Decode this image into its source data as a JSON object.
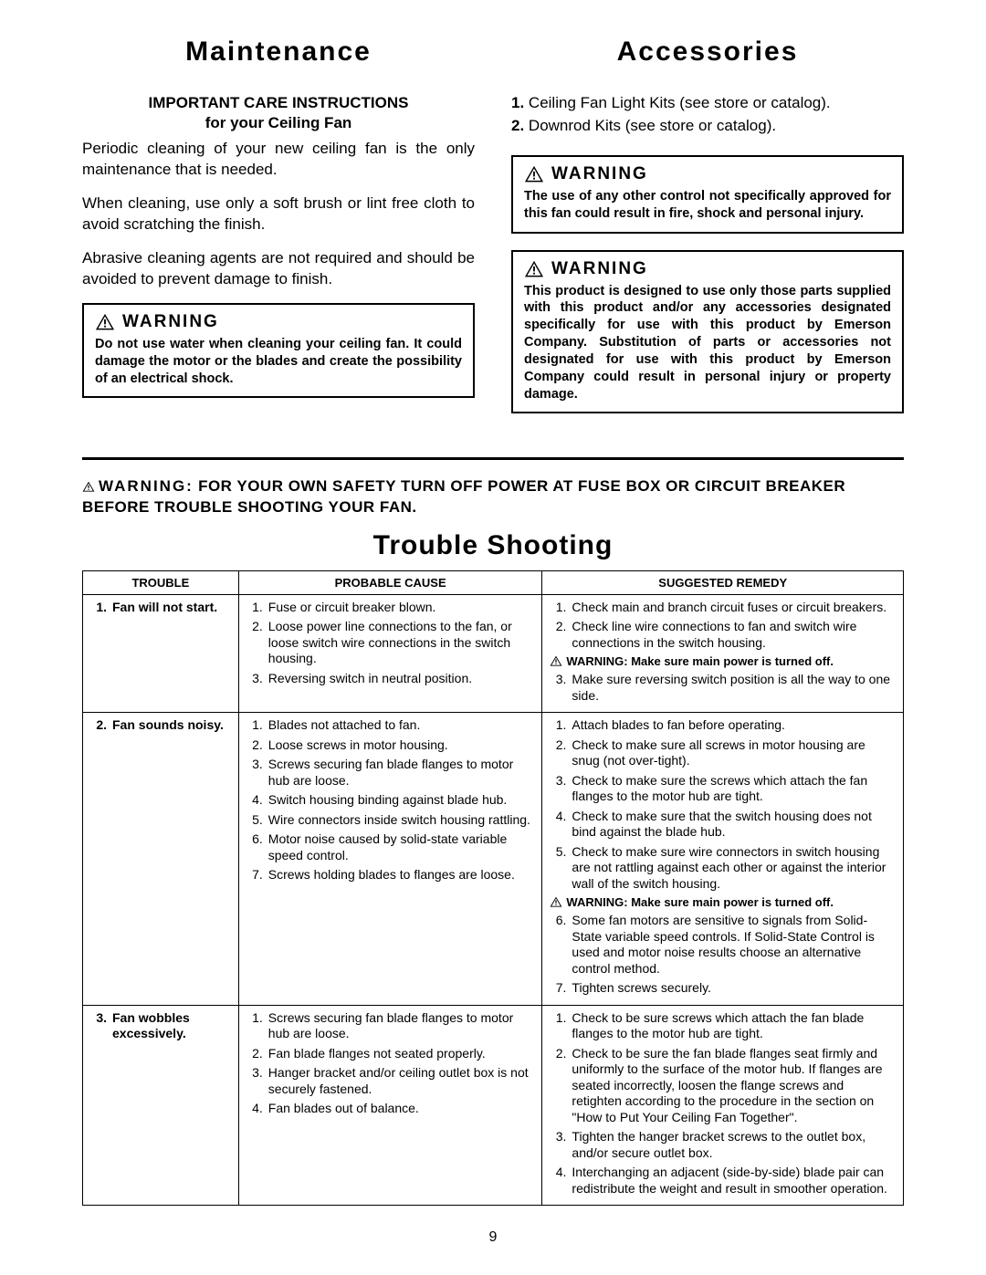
{
  "maintenance": {
    "title": "Maintenance",
    "subhead1": "IMPORTANT CARE INSTRUCTIONS",
    "subhead2": "for your Ceiling Fan",
    "p1": "Periodic cleaning of your new ceiling fan is the only maintenance that is needed.",
    "p2": "When cleaning, use only a soft brush or lint free cloth to avoid scratching the finish.",
    "p3": "Abrasive cleaning agents are not required and should be avoided to prevent damage to finish.",
    "warning_title": "WARNING",
    "warning_body": "Do not use water when cleaning your ceiling fan. It could damage the motor or the blades and create the possibility of an electrical shock."
  },
  "accessories": {
    "title": "Accessories",
    "item1_num": "1.",
    "item1_text": "Ceiling Fan Light Kits (see store or catalog).",
    "item2_num": "2.",
    "item2_text": "Downrod Kits (see store or catalog).",
    "warning1_title": "WARNING",
    "warning1_body": "The use of any other control not specifically approved for this fan could result in fire, shock and personal injury.",
    "warning2_title": "WARNING",
    "warning2_body": "This product is designed to use only those parts supplied with this product and/or any accessories designated specifically for use with this product by Emerson Company. Substitution of parts or accessories not designated for use with this product by Emerson Company could result in personal injury or property damage."
  },
  "trouble": {
    "warn_lead": "WARNING:",
    "warn_text": "FOR YOUR OWN SAFETY TURN OFF POWER AT FUSE BOX OR CIRCUIT BREAKER BEFORE TROUBLE SHOOTING YOUR FAN.",
    "title": "Trouble Shooting",
    "headers": {
      "c1": "TROUBLE",
      "c2": "PROBABLE CAUSE",
      "c3": "SUGGESTED REMEDY"
    },
    "inline_warning": "WARNING: Make sure main power is turned off.",
    "rows": [
      {
        "trouble_n": "1.",
        "trouble_t": "Fan will not start.",
        "causes": [
          {
            "n": "1.",
            "t": "Fuse or circuit breaker blown."
          },
          {
            "n": "2.",
            "t": "Loose power line connections to the fan, or loose switch wire connections in the switch housing."
          },
          {
            "n": "3.",
            "t": "Reversing switch in neutral position."
          }
        ],
        "remedies": [
          {
            "n": "1.",
            "t": "Check main and branch circuit fuses or circuit breakers."
          },
          {
            "n": "2.",
            "t": "Check line wire connections to fan and switch wire connections in the switch housing."
          },
          {
            "warn": true
          },
          {
            "n": "3.",
            "t": "Make sure reversing switch position is all the way to one side."
          }
        ]
      },
      {
        "trouble_n": "2.",
        "trouble_t": "Fan sounds noisy.",
        "causes": [
          {
            "n": "1.",
            "t": "Blades not attached to fan."
          },
          {
            "n": "2.",
            "t": "Loose screws in motor housing."
          },
          {
            "n": "3.",
            "t": "Screws securing fan blade flanges to motor hub are loose."
          },
          {
            "n": "4.",
            "t": "Switch housing binding against blade hub."
          },
          {
            "n": "5.",
            "t": "Wire connectors inside switch housing rattling."
          },
          {
            "n": "6.",
            "t": "Motor noise caused by solid-state variable speed control."
          },
          {
            "n": "7.",
            "t": "Screws holding blades to flanges are loose."
          }
        ],
        "remedies": [
          {
            "n": "1.",
            "t": "Attach blades to fan before operating."
          },
          {
            "n": "2.",
            "t": "Check to make sure all screws in motor housing are snug (not over-tight)."
          },
          {
            "n": "3.",
            "t": "Check to make sure the screws which attach the fan flanges to the motor hub are tight."
          },
          {
            "n": "4.",
            "t": "Check to make sure that the switch housing does not bind against the blade hub."
          },
          {
            "n": "5.",
            "t": "Check to make sure wire connectors in switch housing are not rattling against each other or against the interior wall of the switch housing."
          },
          {
            "warn": true
          },
          {
            "n": "6.",
            "t": "Some fan motors are sensitive to signals from Solid-State variable speed controls. If Solid-State Control is used and motor noise results choose an alternative control method."
          },
          {
            "n": "7.",
            "t": "Tighten screws securely."
          }
        ]
      },
      {
        "trouble_n": "3.",
        "trouble_t": "Fan wobbles excessively.",
        "causes": [
          {
            "n": "1.",
            "t": "Screws securing fan blade flanges to motor hub are loose."
          },
          {
            "n": "2.",
            "t": "Fan blade flanges not seated properly."
          },
          {
            "n": "3.",
            "t": "Hanger bracket and/or ceiling outlet box is not securely fastened."
          },
          {
            "n": "4.",
            "t": "Fan blades out of balance."
          }
        ],
        "remedies": [
          {
            "n": "1.",
            "t": "Check to be sure screws which attach the fan blade flanges to the motor hub are tight."
          },
          {
            "n": "2.",
            "t": "Check to be sure the fan blade flanges seat firmly and uniformly to the surface of the motor hub. If flanges are seated incorrectly, loosen the flange screws and retighten according to the procedure in the section on \"How to Put Your Ceiling Fan Together\"."
          },
          {
            "n": "3.",
            "t": "Tighten the hanger bracket screws to the outlet box, and/or secure outlet box."
          },
          {
            "n": "4.",
            "t": "Interchanging an adjacent (side-by-side) blade pair can redistribute the weight and result in smoother operation."
          }
        ]
      }
    ]
  },
  "page_number": "9"
}
